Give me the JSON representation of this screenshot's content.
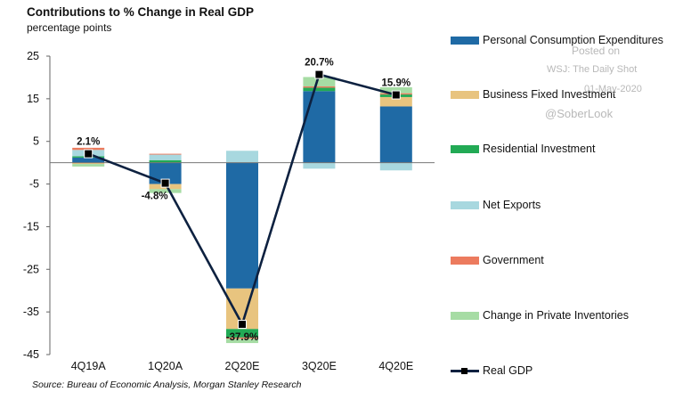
{
  "title": "Contributions to % Change in Real GDP",
  "subtitle": "percentage points",
  "source": "Source: Bureau of Economic Analysis, Morgan Stanley Research",
  "watermark": {
    "posted": "Posted on",
    "publication": "WSJ: The Daily Shot",
    "date": "01-May-2020",
    "handle": "@SoberLook"
  },
  "chart_data": {
    "type": "bar",
    "stacked": true,
    "categories": [
      "4Q19A",
      "1Q20A",
      "2Q20E",
      "3Q20E",
      "4Q20E"
    ],
    "y_ticks": [
      25,
      15,
      5,
      -5,
      -15,
      -25,
      -35,
      -45
    ],
    "ylim": [
      -45,
      25
    ],
    "grid": false,
    "legend_position": "right",
    "series": [
      {
        "name": "Personal Consumption Expenditures",
        "color": "#1f6aa5",
        "values": [
          1.2,
          -5.0,
          -29.5,
          16.8,
          13.2
        ]
      },
      {
        "name": "Business Fixed Investment",
        "color": "#e8c47f",
        "values": [
          -0.3,
          -1.2,
          -9.5,
          0.0,
          2.2
        ]
      },
      {
        "name": "Residential Investment",
        "color": "#22aa55",
        "values": [
          0.3,
          0.6,
          -2.0,
          0.8,
          0.6
        ]
      },
      {
        "name": "Net Exports",
        "color": "#a8d8df",
        "values": [
          1.5,
          1.3,
          2.8,
          -1.4,
          -1.8
        ]
      },
      {
        "name": "Government",
        "color": "#ec7b5e",
        "values": [
          0.5,
          0.2,
          -0.3,
          0.3,
          0.3
        ]
      },
      {
        "name": "Change in Private Inventories",
        "color": "#a6dca4",
        "values": [
          -0.6,
          -0.9,
          -1.0,
          2.2,
          1.4
        ]
      }
    ],
    "line": {
      "name": "Real GDP",
      "color": "#0d2140",
      "values": [
        2.1,
        -4.8,
        -37.9,
        20.7,
        15.9
      ],
      "labels": [
        "2.1%",
        "-4.8%",
        "-37.9%",
        "20.7%",
        "15.9%"
      ]
    }
  }
}
